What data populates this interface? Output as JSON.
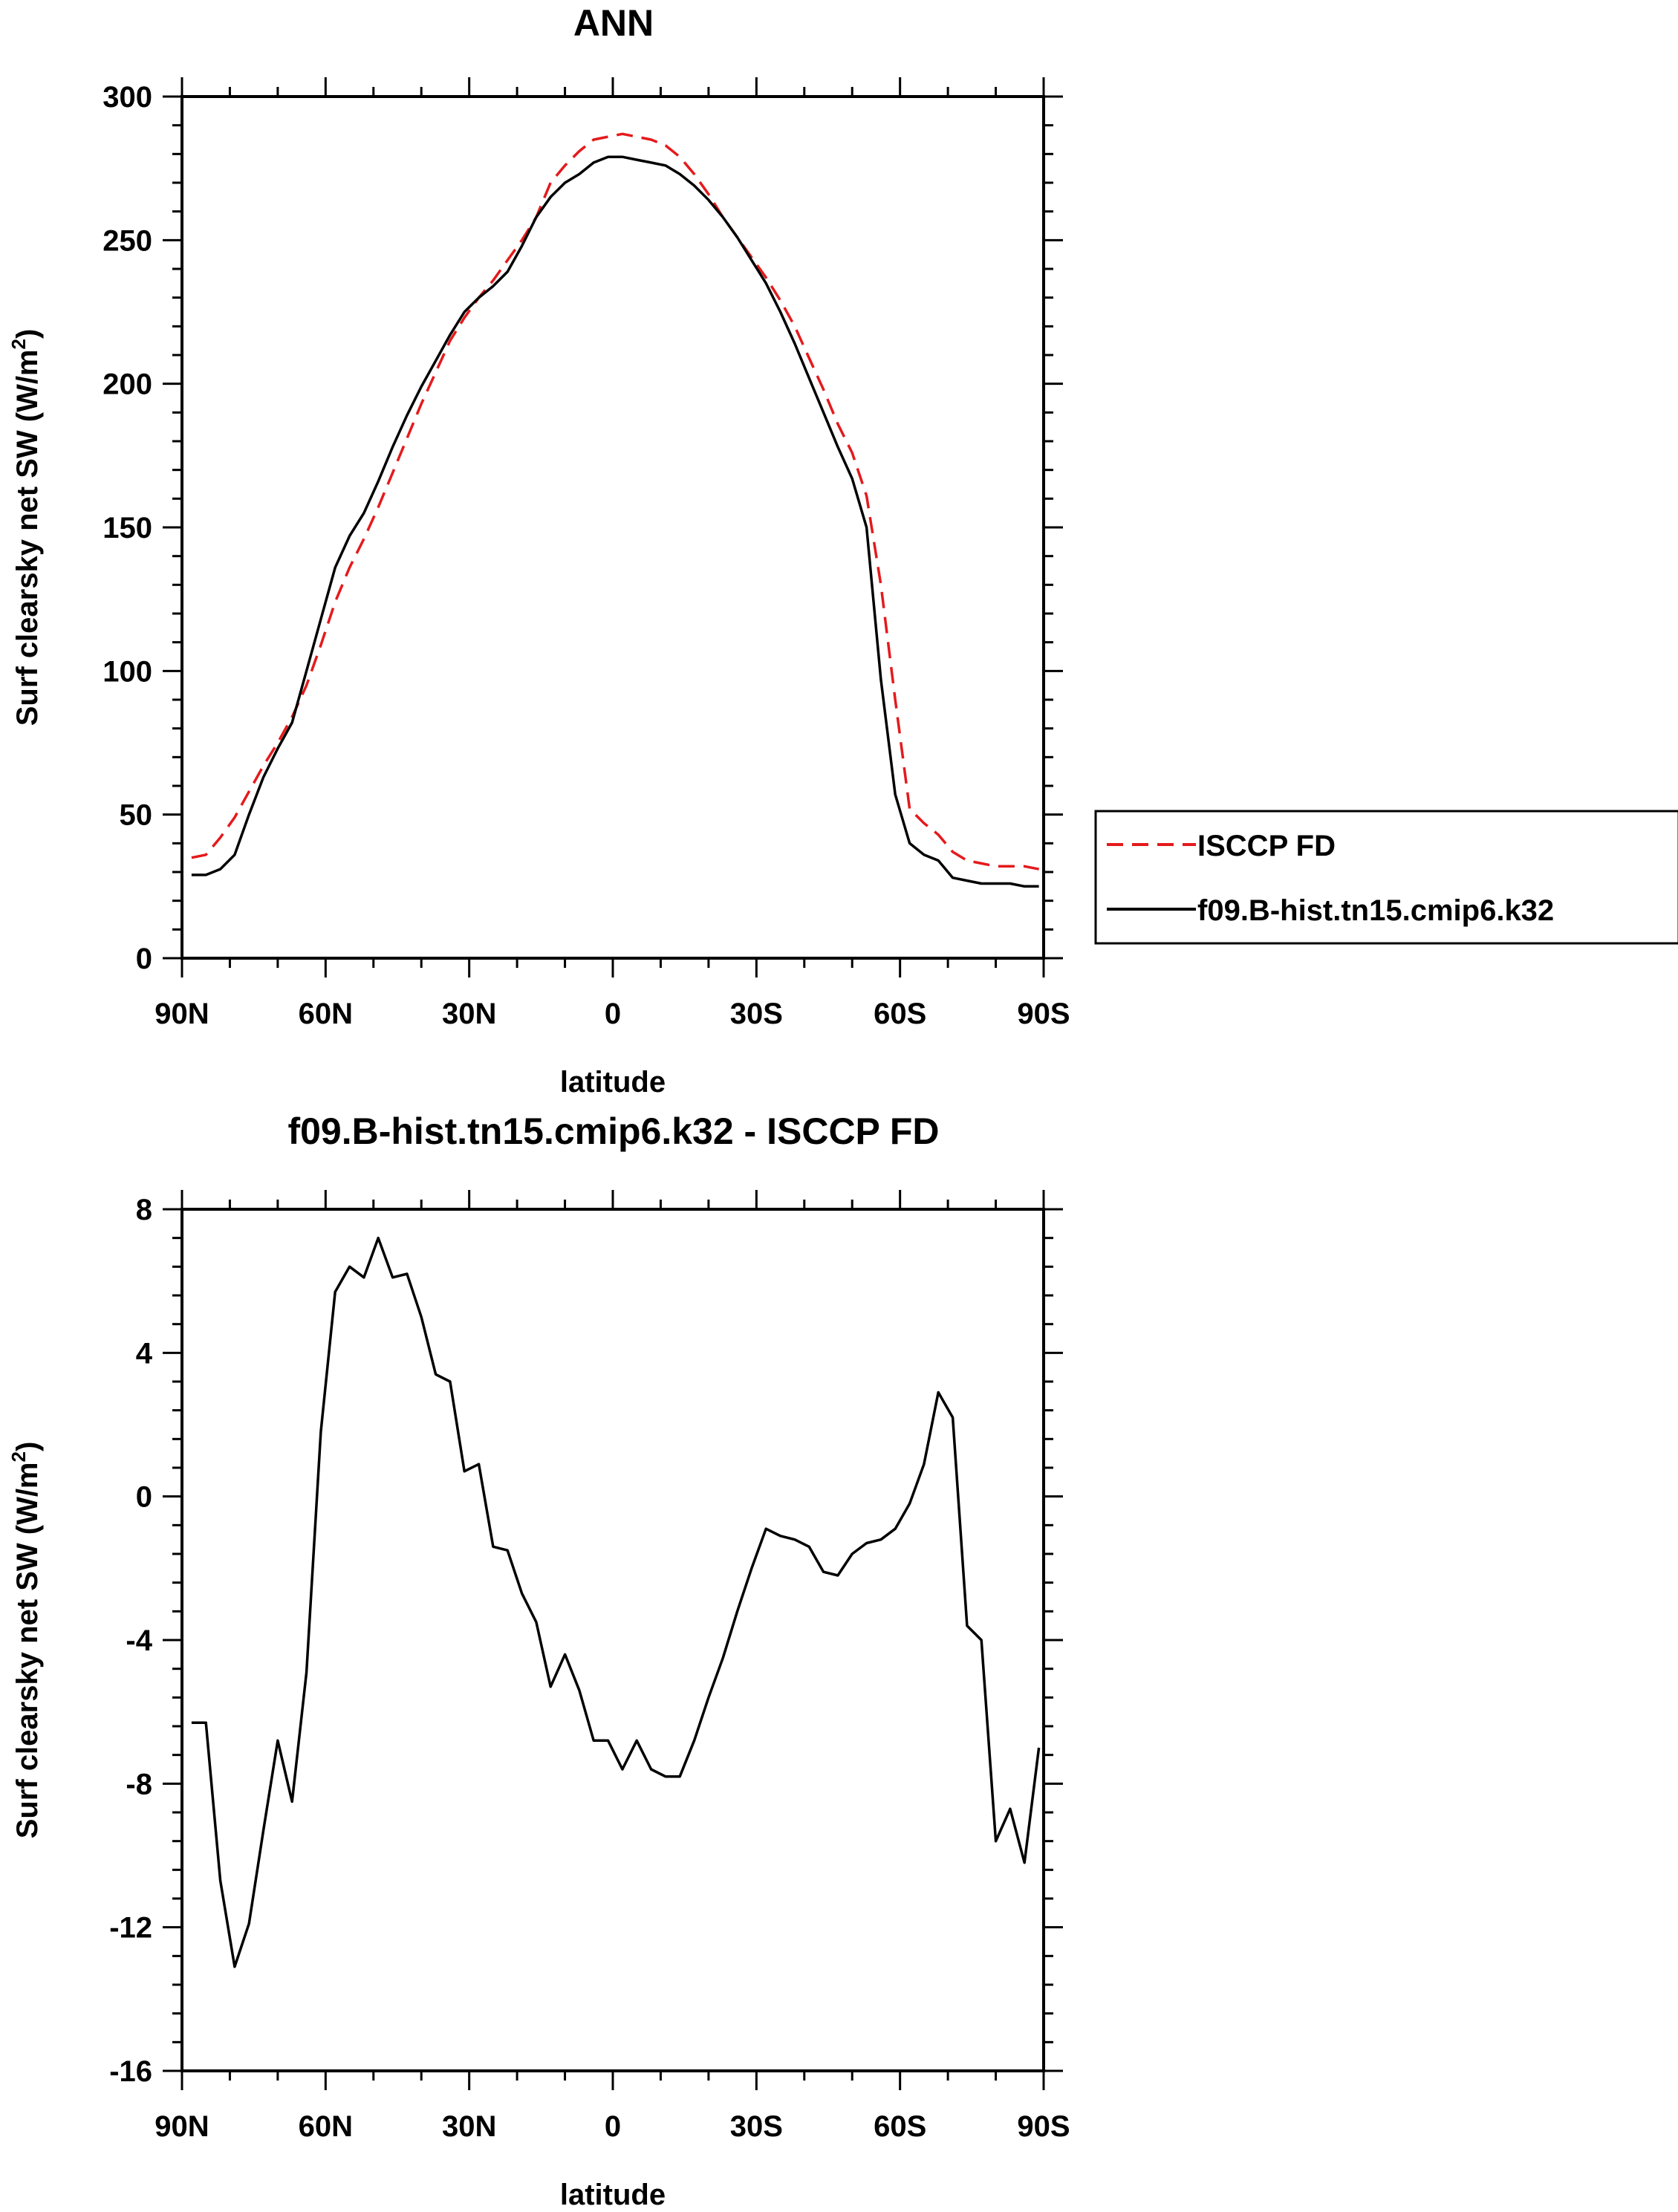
{
  "chart_data": [
    {
      "type": "line",
      "title": "ANN",
      "xlabel": "latitude",
      "ylabel": "Surf clearsky net SW (W/m",
      "ylabel_sup": "2",
      "ylabel_end": ")",
      "xlim": [
        90,
        -90
      ],
      "ylim": [
        0,
        300
      ],
      "x_ticks": [
        90,
        60,
        30,
        0,
        -30,
        -60,
        -90
      ],
      "x_tick_labels": [
        "90N",
        "60N",
        "30N",
        "0",
        "30S",
        "60S",
        "90S"
      ],
      "y_ticks": [
        0,
        50,
        100,
        150,
        200,
        250,
        300
      ],
      "y_tick_labels": [
        "0",
        "50",
        "100",
        "150",
        "200",
        "250",
        "300"
      ],
      "legend_position": "right",
      "series": [
        {
          "name": "ISCCP FD",
          "color": "#e41a1c",
          "dash": "dashed",
          "x": [
            88,
            85,
            82,
            79,
            76,
            73,
            70,
            67,
            64,
            61,
            58,
            55,
            52,
            49,
            46,
            43,
            40,
            37,
            34,
            31,
            28,
            25,
            22,
            19,
            16,
            13,
            10,
            7,
            4,
            1,
            -2,
            -5,
            -8,
            -11,
            -14,
            -17,
            -20,
            -23,
            -26,
            -29,
            -32,
            -35,
            -38,
            -41,
            -44,
            -47,
            -50,
            -53,
            -56,
            -59,
            -62,
            -65,
            -68,
            -71,
            -74,
            -77,
            -80,
            -83,
            -86,
            -89
          ],
          "y": [
            35,
            36,
            42,
            49,
            58,
            67,
            75,
            84,
            95,
            109,
            124,
            136,
            146,
            157,
            169,
            181,
            193,
            204,
            215,
            223,
            230,
            236,
            243,
            250,
            258,
            270,
            276,
            281,
            285,
            286,
            287,
            286,
            285,
            283,
            279,
            273,
            266,
            258,
            251,
            244,
            237,
            229,
            220,
            209,
            198,
            186,
            176,
            161,
            130,
            90,
            52,
            47,
            43,
            37,
            34,
            33,
            32,
            32,
            32,
            31
          ]
        },
        {
          "name": "f09.B-hist.tn15.cmip6.k32",
          "color": "#000000",
          "dash": "solid",
          "x": [
            88,
            85,
            82,
            79,
            76,
            73,
            70,
            67,
            64,
            61,
            58,
            55,
            52,
            49,
            46,
            43,
            40,
            37,
            34,
            31,
            28,
            25,
            22,
            19,
            16,
            13,
            10,
            7,
            4,
            1,
            -2,
            -5,
            -8,
            -11,
            -14,
            -17,
            -20,
            -23,
            -26,
            -29,
            -32,
            -35,
            -38,
            -41,
            -44,
            -47,
            -50,
            -53,
            -56,
            -59,
            -62,
            -65,
            -68,
            -71,
            -74,
            -77,
            -80,
            -83,
            -86,
            -89
          ],
          "y": [
            29,
            29,
            31,
            36,
            50,
            63,
            73,
            82,
            100,
            118,
            136,
            147,
            155,
            166,
            178,
            189,
            199,
            208,
            217,
            225,
            230,
            234,
            239,
            248,
            258,
            265,
            270,
            273,
            277,
            279,
            279,
            278,
            277,
            276,
            273,
            269,
            264,
            258,
            251,
            243,
            235,
            225,
            214,
            202,
            190,
            178,
            167,
            150,
            97,
            57,
            40,
            36,
            34,
            28,
            27,
            26,
            26,
            26,
            25,
            25
          ]
        }
      ]
    },
    {
      "type": "line",
      "title": "f09.B-hist.tn15.cmip6.k32 - ISCCP FD",
      "xlabel": "latitude",
      "ylabel": "Surf clearsky net SW (W/m",
      "ylabel_sup": "2",
      "ylabel_end": ")",
      "xlim": [
        90,
        -90
      ],
      "ylim": [
        -16,
        8
      ],
      "x_ticks": [
        90,
        60,
        30,
        0,
        -30,
        -60,
        -90
      ],
      "x_tick_labels": [
        "90N",
        "60N",
        "30N",
        "0",
        "30S",
        "60S",
        "90S"
      ],
      "y_ticks": [
        -16,
        -12,
        -8,
        -4,
        0,
        4,
        8
      ],
      "y_tick_labels": [
        "-16",
        "-12",
        "-8",
        "-4",
        "0",
        "4",
        "8"
      ],
      "series": [
        {
          "color": "#000000",
          "dash": "solid",
          "x": [
            88,
            85,
            82,
            79,
            76,
            73,
            70,
            67,
            64,
            61,
            58,
            55,
            52,
            49,
            46,
            43,
            40,
            37,
            34,
            31,
            28,
            25,
            22,
            19,
            16,
            13,
            10,
            7,
            4,
            1,
            -2,
            -5,
            -8,
            -11,
            -14,
            -17,
            -20,
            -23,
            -26,
            -29,
            -32,
            -35,
            -38,
            -41,
            -44,
            -47,
            -50,
            -53,
            -56,
            -59,
            -62,
            -65,
            -68,
            -71,
            -74,
            -77,
            -80,
            -83,
            -86,
            -89
          ],
          "y": [
            -6.3,
            -6.3,
            -10.7,
            -13.1,
            -11.9,
            -9.3,
            -6.8,
            -8.5,
            -4.9,
            1.8,
            5.7,
            6.4,
            6.1,
            7.2,
            6.1,
            6.2,
            5.0,
            3.4,
            3.2,
            0.7,
            0.9,
            -1.4,
            -1.5,
            -2.7,
            -3.5,
            -5.3,
            -4.4,
            -5.4,
            -6.8,
            -6.8,
            -7.6,
            -6.8,
            -7.6,
            -7.8,
            -7.8,
            -6.8,
            -5.6,
            -4.5,
            -3.2,
            -2.0,
            -0.9,
            -1.1,
            -1.2,
            -1.4,
            -2.1,
            -2.2,
            -1.6,
            -1.3,
            -1.2,
            -0.9,
            -0.2,
            0.9,
            2.9,
            2.2,
            -3.6,
            -4.0,
            -9.6,
            -8.7,
            -10.2,
            -7.0
          ]
        }
      ]
    }
  ]
}
